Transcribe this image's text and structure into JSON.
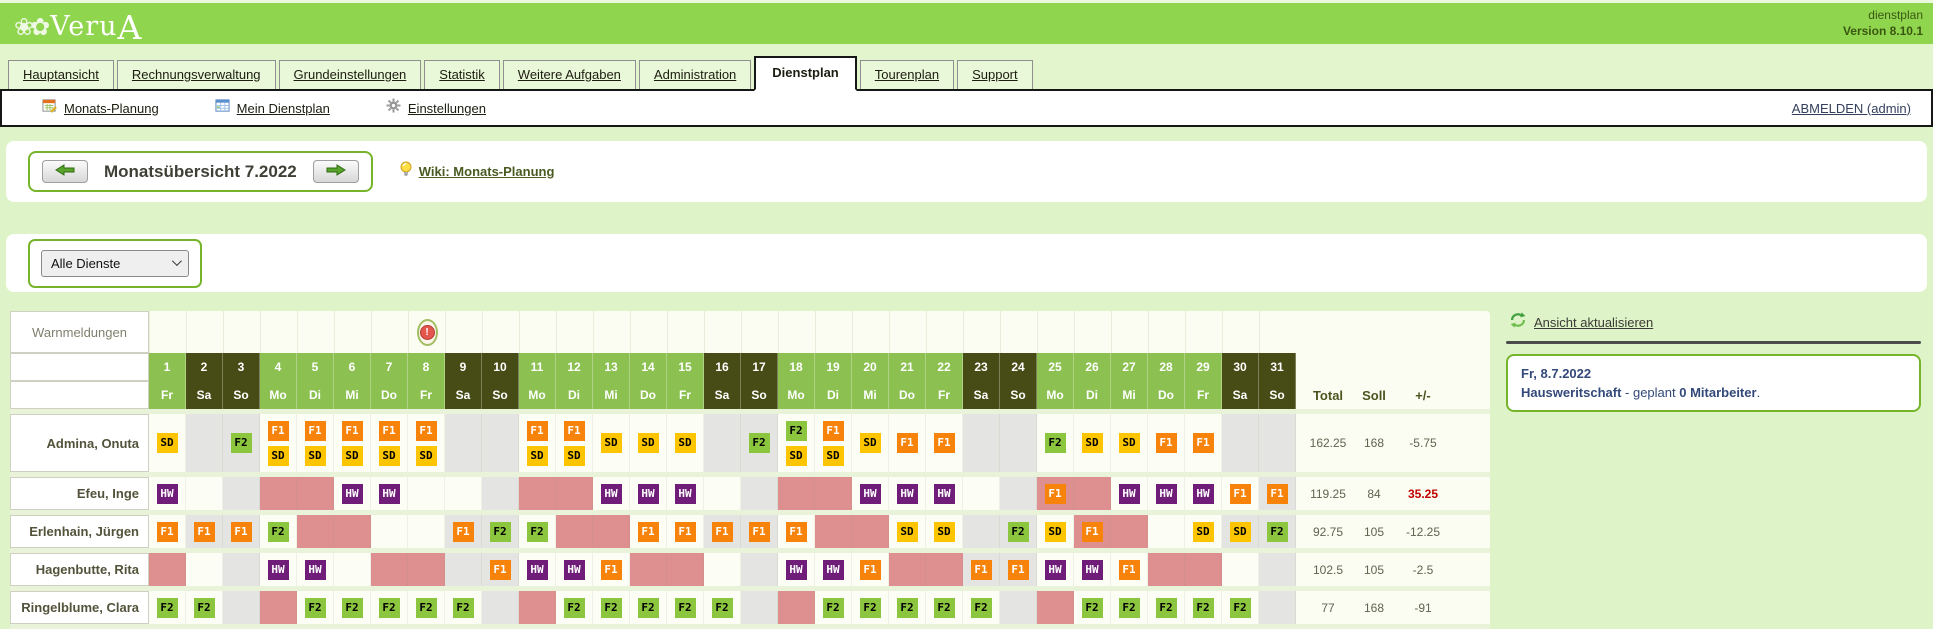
{
  "app": {
    "logo": "VeruA",
    "name": "dienstplan",
    "version": "Version 8.10.1"
  },
  "tabs": [
    {
      "label": "Hauptansicht",
      "active": false
    },
    {
      "label": "Rechnungsverwaltung",
      "active": false
    },
    {
      "label": "Grundeinstellungen",
      "active": false
    },
    {
      "label": "Statistik",
      "active": false
    },
    {
      "label": "Weitere Aufgaben",
      "active": false
    },
    {
      "label": "Administration",
      "active": false
    },
    {
      "label": "Dienstplan",
      "active": true
    },
    {
      "label": "Tourenplan",
      "active": false
    },
    {
      "label": "Support",
      "active": false
    }
  ],
  "subnav": {
    "items": [
      {
        "label": "Monats-Planung",
        "icon": "calendar-edit-icon"
      },
      {
        "label": "Mein Dienstplan",
        "icon": "calendar-table-icon"
      },
      {
        "label": "Einstellungen",
        "icon": "gear-icon"
      }
    ],
    "logout": "ABMELDEN (admin)"
  },
  "month_nav": {
    "title": "Monatsübersicht 7.2022",
    "wiki_label": "Wiki: Monats-Planung"
  },
  "filter": {
    "selected": "Alle Dienste"
  },
  "roster": {
    "warnings_label": "Warnmeldungen",
    "warning_day": 8,
    "summary_headers": [
      "Total",
      "Soll",
      "+/-"
    ],
    "days": [
      {
        "n": "1",
        "w": "Fr",
        "we": false
      },
      {
        "n": "2",
        "w": "Sa",
        "we": true
      },
      {
        "n": "3",
        "w": "So",
        "we": true
      },
      {
        "n": "4",
        "w": "Mo",
        "we": false
      },
      {
        "n": "5",
        "w": "Di",
        "we": false
      },
      {
        "n": "6",
        "w": "Mi",
        "we": false
      },
      {
        "n": "7",
        "w": "Do",
        "we": false
      },
      {
        "n": "8",
        "w": "Fr",
        "we": false
      },
      {
        "n": "9",
        "w": "Sa",
        "we": true
      },
      {
        "n": "10",
        "w": "So",
        "we": true
      },
      {
        "n": "11",
        "w": "Mo",
        "we": false
      },
      {
        "n": "12",
        "w": "Di",
        "we": false
      },
      {
        "n": "13",
        "w": "Mi",
        "we": false
      },
      {
        "n": "14",
        "w": "Do",
        "we": false
      },
      {
        "n": "15",
        "w": "Fr",
        "we": false
      },
      {
        "n": "16",
        "w": "Sa",
        "we": true
      },
      {
        "n": "17",
        "w": "So",
        "we": true
      },
      {
        "n": "18",
        "w": "Mo",
        "we": false
      },
      {
        "n": "19",
        "w": "Di",
        "we": false
      },
      {
        "n": "20",
        "w": "Mi",
        "we": false
      },
      {
        "n": "21",
        "w": "Do",
        "we": false
      },
      {
        "n": "22",
        "w": "Fr",
        "we": false
      },
      {
        "n": "23",
        "w": "Sa",
        "we": true
      },
      {
        "n": "24",
        "w": "So",
        "we": true
      },
      {
        "n": "25",
        "w": "Mo",
        "we": false
      },
      {
        "n": "26",
        "w": "Di",
        "we": false
      },
      {
        "n": "27",
        "w": "Mi",
        "we": false
      },
      {
        "n": "28",
        "w": "Do",
        "we": false
      },
      {
        "n": "29",
        "w": "Fr",
        "we": false
      },
      {
        "n": "30",
        "w": "Sa",
        "we": true
      },
      {
        "n": "31",
        "w": "So",
        "we": true
      }
    ],
    "legend": {
      "SD": {
        "bg": "#fdc500",
        "fg": "#000000"
      },
      "F1": {
        "bg": "#f8830b",
        "fg": "#ffffff"
      },
      "F2": {
        "bg": "#8cc63e",
        "fg": "#000000"
      },
      "HW": {
        "bg": "#6f1d78",
        "fg": "#ffffff"
      }
    },
    "employees": [
      {
        "name": "Admina, Onuta",
        "cells": [
          "SD:w",
          ":g",
          "F2:g",
          "F1+SD:w",
          "F1+SD:w",
          "F1+SD:w",
          "F1+SD:w",
          "F1+SD:w",
          ":g",
          ":g",
          "F1+SD:w",
          "F1+SD:w",
          "SD:w",
          "SD:w",
          "SD:w",
          ":g",
          "F2:g",
          "F2+SD:w",
          "F1+SD:w",
          "SD:w",
          "F1:w",
          "F1:w",
          ":g",
          ":g",
          "F2:w",
          "SD:w",
          "SD:w",
          "F1:w",
          "F1:w",
          ":g",
          ":g"
        ],
        "total": "162.25",
        "soll": "168",
        "diff": "-5.75",
        "alert": false
      },
      {
        "name": "Efeu, Inge",
        "cells": [
          "HW:w",
          ":w",
          ":g",
          ":p",
          ":p",
          "HW:w",
          "HW:w",
          ":w",
          ":w",
          ":g",
          ":p",
          ":p",
          "HW:w",
          "HW:w",
          "HW:w",
          ":w",
          ":g",
          ":p",
          ":p",
          "HW:w",
          "HW:w",
          "HW:w",
          ":w",
          ":g",
          "F1:p",
          ":p",
          "HW:w",
          "HW:w",
          "HW:w",
          "F1:w",
          "F1:g"
        ],
        "total": "119.25",
        "soll": "84",
        "diff": "35.25",
        "alert": true
      },
      {
        "name": "Erlenhain, Jürgen",
        "cells": [
          "F1:w",
          "F1:g",
          "F1:g",
          "F2:w",
          ":p",
          ":p",
          ":w",
          ":w",
          "F1:g",
          "F2:g",
          "F2:w",
          ":p",
          ":p",
          "F1:w",
          "F1:w",
          "F1:g",
          "F1:g",
          "F1:w",
          ":p",
          ":p",
          "SD:w",
          "SD:w",
          ":g",
          "F2:g",
          "SD:w",
          "F1:p",
          ":p",
          ":w",
          "SD:w",
          "SD:g",
          "F2:g"
        ],
        "total": "92.75",
        "soll": "105",
        "diff": "-12.25",
        "alert": false
      },
      {
        "name": "Hagenbutte, Rita",
        "cells": [
          ":p",
          ":w",
          ":g",
          "HW:w",
          "HW:w",
          ":w",
          ":p",
          ":p",
          ":g",
          "F1:g",
          "HW:w",
          "HW:w",
          "F1:w",
          ":p",
          ":p",
          ":w",
          ":g",
          "HW:w",
          "HW:w",
          "F1:w",
          ":p",
          ":p",
          "F1:g",
          "F1:g",
          "HW:w",
          "HW:w",
          "F1:w",
          ":p",
          ":p",
          ":w",
          ":g"
        ],
        "total": "102.5",
        "soll": "105",
        "diff": "-2.5",
        "alert": false
      },
      {
        "name": "Ringelblume, Clara",
        "cells": [
          "F2:w",
          "F2:w",
          ":g",
          ":p",
          "F2:w",
          "F2:w",
          "F2:w",
          "F2:w",
          "F2:w",
          ":g",
          ":p",
          "F2:w",
          "F2:w",
          "F2:w",
          "F2:w",
          "F2:w",
          ":g",
          ":p",
          "F2:w",
          "F2:w",
          "F2:w",
          "F2:w",
          "F2:w",
          ":g",
          ":p",
          "F2:w",
          "F2:w",
          "F2:w",
          "F2:w",
          "F2:w",
          ":g"
        ],
        "total": "77",
        "soll": "168",
        "diff": "-91",
        "alert": false
      }
    ]
  },
  "side": {
    "refresh_label": "Ansicht aktualisieren",
    "info": {
      "date": "Fr, 8.7.2022",
      "area": "Hausweritschaft",
      "middle": " - geplant ",
      "count": "0 Mitarbeiter",
      "end": "."
    }
  }
}
